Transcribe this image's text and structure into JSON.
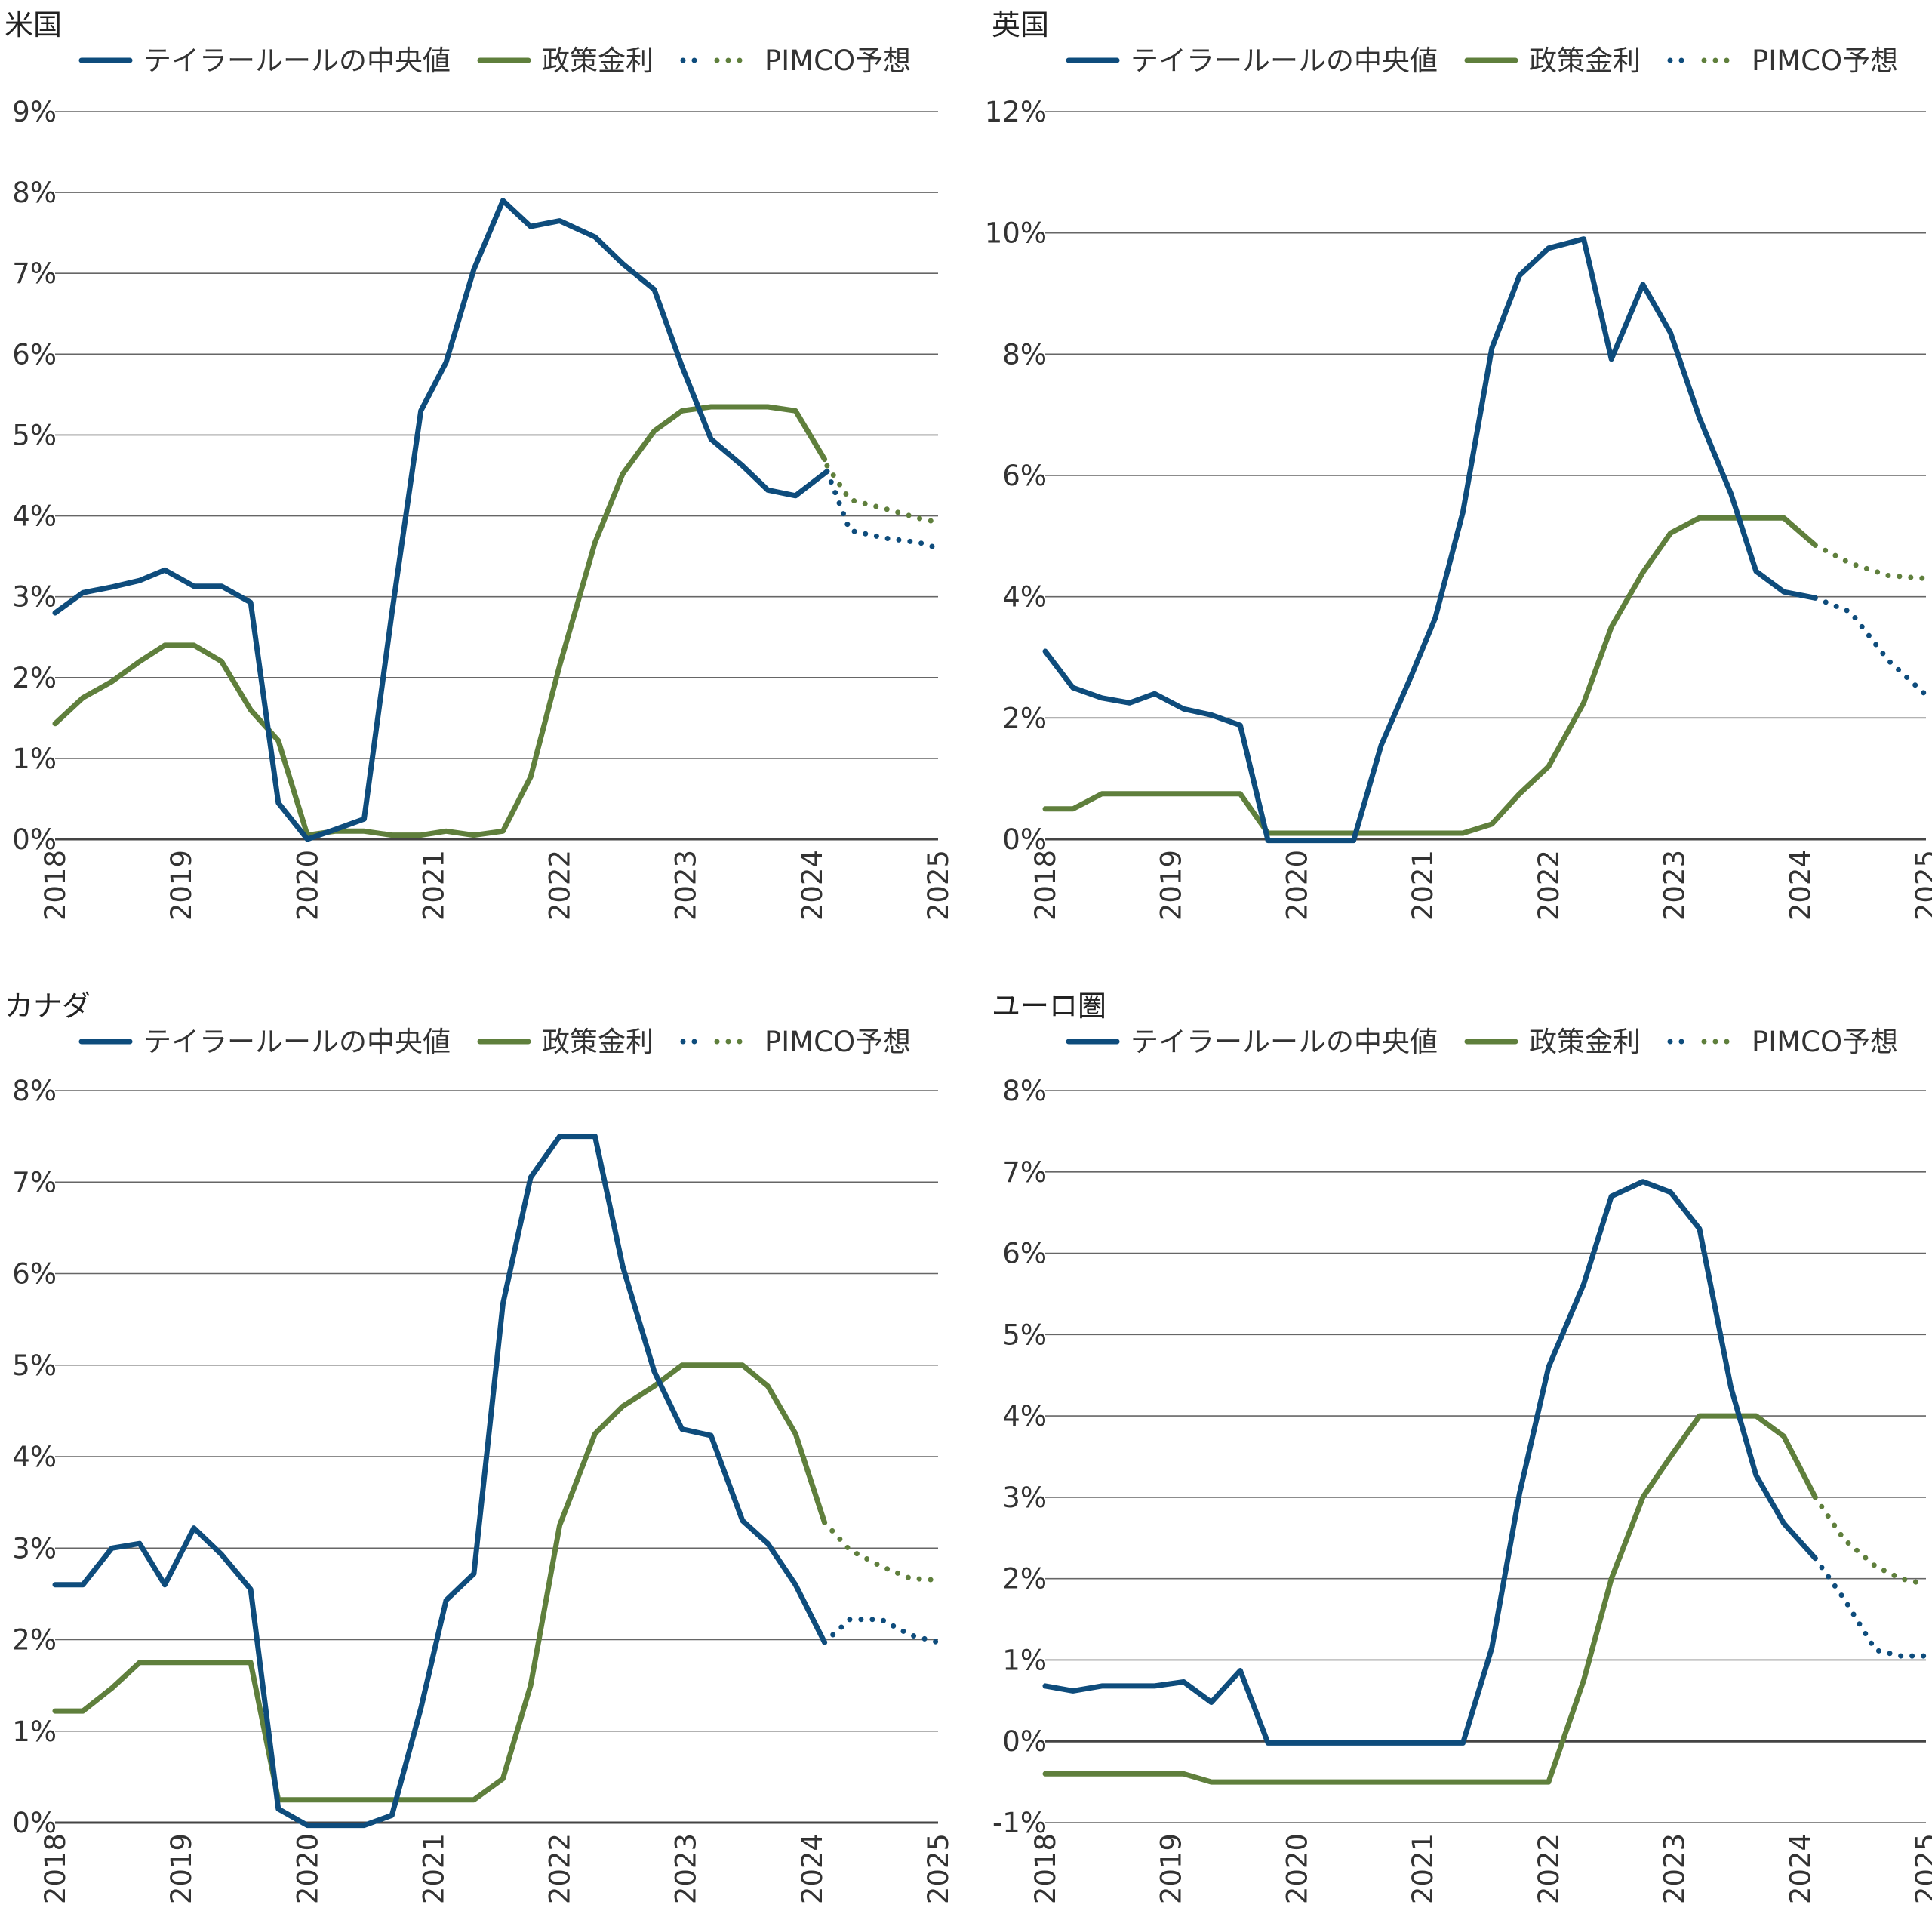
{
  "colors": {
    "taylor": "#0e4c7c",
    "policy": "#5f7f3c",
    "grid": "#666666",
    "zero": "#444444",
    "text": "#222222"
  },
  "legend": {
    "taylor": "テイラールールの中央値",
    "policy": "政策金利",
    "forecast": "PIMCO予想"
  },
  "chart_data": [
    {
      "type": "line",
      "title": "米国",
      "ylim": [
        0,
        9
      ],
      "yticks": [
        0,
        1,
        2,
        3,
        4,
        5,
        6,
        7,
        8,
        9
      ],
      "ytick_labels": [
        "0%",
        "1%",
        "2%",
        "3%",
        "4%",
        "5%",
        "6%",
        "7%",
        "8%",
        "9%"
      ],
      "xlim": [
        2018,
        2025
      ],
      "xticks": [
        "2018",
        "2019",
        "2020",
        "2021",
        "2022",
        "2023",
        "2024",
        "2025"
      ],
      "series": [
        {
          "name": "テイラールールの中央値",
          "style": "solid",
          "x": [
            2018.0,
            2018.22,
            2018.45,
            2018.67,
            2018.87,
            2019.1,
            2019.32,
            2019.55,
            2019.77,
            2020.0,
            2020.22,
            2020.45,
            2020.67,
            2020.9,
            2021.1,
            2021.32,
            2021.55,
            2021.77,
            2022.0,
            2022.28,
            2022.5,
            2022.75,
            2022.97,
            2023.2,
            2023.45,
            2023.65,
            2023.87,
            2024.12
          ],
          "y": [
            2.8,
            3.05,
            3.12,
            3.2,
            3.33,
            3.13,
            3.13,
            2.93,
            0.45,
            0.0,
            0.12,
            0.25,
            2.8,
            5.3,
            5.9,
            7.05,
            7.9,
            7.58,
            7.65,
            7.45,
            7.12,
            6.8,
            5.85,
            4.95,
            4.62,
            4.32,
            4.25,
            4.55
          ]
        },
        {
          "name": "政策金利",
          "style": "solid",
          "x": [
            2018.0,
            2018.22,
            2018.45,
            2018.67,
            2018.87,
            2019.1,
            2019.32,
            2019.55,
            2019.77,
            2020.0,
            2020.22,
            2020.45,
            2020.67,
            2020.9,
            2021.1,
            2021.32,
            2021.55,
            2021.77,
            2022.0,
            2022.28,
            2022.5,
            2022.75,
            2022.97,
            2023.2,
            2023.45,
            2023.65,
            2023.87,
            2024.1
          ],
          "y": [
            1.43,
            1.75,
            1.95,
            2.2,
            2.4,
            2.4,
            2.2,
            1.6,
            1.22,
            0.05,
            0.1,
            0.1,
            0.05,
            0.05,
            0.1,
            0.05,
            0.1,
            0.77,
            2.15,
            3.67,
            4.52,
            5.05,
            5.3,
            5.35,
            5.35,
            5.35,
            5.3,
            4.7
          ]
        },
        {
          "name": "テイラールールの中央値 PIMCO予想",
          "style": "dotted",
          "x": [
            2024.12,
            2024.3,
            2024.6,
            2024.85,
            2025.0
          ],
          "y": [
            4.55,
            3.82,
            3.72,
            3.67,
            3.6
          ]
        },
        {
          "name": "政策金利 PIMCO予想",
          "style": "dotted",
          "x": [
            2024.12,
            2024.3,
            2024.6,
            2024.85,
            2025.0
          ],
          "y": [
            4.62,
            4.2,
            4.08,
            3.97,
            3.92
          ]
        }
      ]
    },
    {
      "type": "line",
      "title": "英国",
      "ylim": [
        0,
        12
      ],
      "yticks": [
        0,
        2,
        4,
        6,
        8,
        10,
        12
      ],
      "ytick_labels": [
        "0%",
        "2%",
        "4%",
        "6%",
        "8%",
        "10%",
        "12%"
      ],
      "xlim": [
        2018,
        2025
      ],
      "xticks": [
        "2018",
        "2019",
        "2020",
        "2021",
        "2022",
        "2023",
        "2024",
        "2025"
      ],
      "series": [
        {
          "name": "テイラールールの中央値",
          "style": "solid",
          "x": [
            2018.0,
            2018.22,
            2018.45,
            2018.67,
            2018.87,
            2019.1,
            2019.32,
            2019.55,
            2019.77,
            2020.0,
            2020.22,
            2020.45,
            2020.67,
            2020.9,
            2021.1,
            2021.32,
            2021.55,
            2021.77,
            2022.0,
            2022.28,
            2022.5,
            2022.75,
            2022.97,
            2023.2,
            2023.45,
            2023.65,
            2023.87,
            2024.12
          ],
          "y": [
            3.1,
            2.5,
            2.33,
            2.25,
            2.4,
            2.15,
            2.05,
            1.88,
            -0.02,
            -0.02,
            -0.02,
            -0.02,
            1.55,
            2.65,
            3.65,
            5.4,
            8.1,
            9.3,
            9.75,
            9.9,
            7.92,
            9.15,
            8.35,
            6.95,
            5.7,
            4.42,
            4.08,
            3.98
          ]
        },
        {
          "name": "政策金利",
          "style": "solid",
          "x": [
            2018.0,
            2018.22,
            2018.45,
            2018.67,
            2018.87,
            2019.1,
            2019.32,
            2019.55,
            2019.77,
            2020.0,
            2020.22,
            2020.45,
            2020.67,
            2020.9,
            2021.1,
            2021.32,
            2021.55,
            2021.77,
            2022.0,
            2022.28,
            2022.5,
            2022.75,
            2022.97,
            2023.2,
            2023.45,
            2023.65,
            2023.87,
            2024.12
          ],
          "y": [
            0.5,
            0.5,
            0.75,
            0.75,
            0.75,
            0.75,
            0.75,
            0.75,
            0.1,
            0.1,
            0.1,
            0.1,
            0.1,
            0.1,
            0.1,
            0.1,
            0.25,
            0.75,
            1.2,
            2.25,
            3.5,
            4.4,
            5.05,
            5.3,
            5.3,
            5.3,
            5.3,
            4.85
          ]
        },
        {
          "name": "テイラールールの中央値 PIMCO予想",
          "style": "dotted",
          "x": [
            2024.12,
            2024.4,
            2024.7,
            2025.0
          ],
          "y": [
            3.98,
            3.75,
            2.95,
            2.38
          ]
        },
        {
          "name": "政策金利 PIMCO予想",
          "style": "dotted",
          "x": [
            2024.12,
            2024.4,
            2024.7,
            2025.0
          ],
          "y": [
            4.85,
            4.55,
            4.35,
            4.3
          ]
        }
      ]
    },
    {
      "type": "line",
      "title": "カナダ",
      "ylim": [
        0,
        8
      ],
      "yticks": [
        0,
        1,
        2,
        3,
        4,
        5,
        6,
        7,
        8
      ],
      "ytick_labels": [
        "0%",
        "1%",
        "2%",
        "3%",
        "4%",
        "5%",
        "6%",
        "7%",
        "8%"
      ],
      "xlim": [
        2018,
        2025
      ],
      "xticks": [
        "2018",
        "2019",
        "2020",
        "2021",
        "2022",
        "2023",
        "2024",
        "2025"
      ],
      "series": [
        {
          "name": "テイラールールの中央値",
          "style": "solid",
          "x": [
            2018.0,
            2018.22,
            2018.45,
            2018.67,
            2018.87,
            2019.1,
            2019.32,
            2019.55,
            2019.77,
            2020.0,
            2020.22,
            2020.45,
            2020.67,
            2020.9,
            2021.1,
            2021.32,
            2021.55,
            2021.77,
            2022.0,
            2022.28,
            2022.5,
            2022.75,
            2022.97,
            2023.2,
            2023.45,
            2023.65,
            2023.87,
            2024.1
          ],
          "y": [
            2.6,
            2.6,
            3.0,
            3.05,
            2.6,
            3.22,
            2.93,
            2.55,
            0.15,
            -0.03,
            -0.03,
            -0.03,
            0.08,
            1.25,
            2.43,
            2.72,
            5.67,
            7.05,
            7.5,
            7.5,
            6.08,
            4.93,
            4.3,
            4.23,
            3.3,
            3.05,
            2.6,
            1.97
          ]
        },
        {
          "name": "政策金利",
          "style": "solid",
          "x": [
            2018.0,
            2018.22,
            2018.45,
            2018.67,
            2018.87,
            2019.1,
            2019.32,
            2019.55,
            2019.77,
            2020.0,
            2020.22,
            2020.45,
            2020.67,
            2020.9,
            2021.1,
            2021.32,
            2021.55,
            2021.77,
            2022.0,
            2022.28,
            2022.5,
            2022.75,
            2022.97,
            2023.2,
            2023.45,
            2023.65,
            2023.87,
            2024.1
          ],
          "y": [
            1.22,
            1.22,
            1.47,
            1.75,
            1.75,
            1.75,
            1.75,
            1.75,
            0.25,
            0.25,
            0.25,
            0.25,
            0.25,
            0.25,
            0.25,
            0.25,
            0.48,
            1.5,
            3.25,
            4.25,
            4.55,
            4.77,
            5.0,
            5.0,
            5.0,
            4.77,
            4.25,
            3.28
          ]
        },
        {
          "name": "テイラールールの中央値 PIMCO予想",
          "style": "dotted",
          "x": [
            2024.1,
            2024.3,
            2024.55,
            2024.78,
            2025.0
          ],
          "y": [
            1.97,
            2.22,
            2.22,
            2.05,
            1.97
          ]
        },
        {
          "name": "政策金利 PIMCO予想",
          "style": "dotted",
          "x": [
            2024.1,
            2024.3,
            2024.55,
            2024.78,
            2025.0
          ],
          "y": [
            3.28,
            2.98,
            2.8,
            2.67,
            2.65
          ]
        }
      ]
    },
    {
      "type": "line",
      "title": "ユーロ圏",
      "ylim": [
        -1,
        8
      ],
      "yticks": [
        -1,
        0,
        1,
        2,
        3,
        4,
        5,
        6,
        7,
        8
      ],
      "ytick_labels": [
        "-1%",
        "0%",
        "1%",
        "2%",
        "3%",
        "4%",
        "5%",
        "6%",
        "7%",
        "8%"
      ],
      "xlim": [
        2018,
        2025
      ],
      "xticks": [
        "2018",
        "2019",
        "2020",
        "2021",
        "2022",
        "2023",
        "2024",
        "2025"
      ],
      "series": [
        {
          "name": "テイラールールの中央値",
          "style": "solid",
          "x": [
            2018.0,
            2018.22,
            2018.45,
            2018.67,
            2018.87,
            2019.1,
            2019.32,
            2019.55,
            2019.77,
            2020.0,
            2020.22,
            2020.45,
            2020.67,
            2020.9,
            2021.1,
            2021.32,
            2021.55,
            2021.77,
            2022.0,
            2022.28,
            2022.5,
            2022.75,
            2022.97,
            2023.2,
            2023.45,
            2023.65,
            2023.87,
            2024.12
          ],
          "y": [
            0.68,
            0.62,
            0.68,
            0.68,
            0.68,
            0.73,
            0.48,
            0.87,
            -0.02,
            -0.02,
            -0.02,
            -0.02,
            -0.02,
            -0.02,
            -0.02,
            -0.02,
            1.15,
            3.05,
            4.6,
            5.62,
            6.7,
            6.88,
            6.75,
            6.3,
            4.35,
            3.27,
            2.68,
            2.25
          ]
        },
        {
          "name": "政策金利",
          "style": "solid",
          "x": [
            2018.0,
            2018.22,
            2018.45,
            2018.67,
            2018.87,
            2019.1,
            2019.32,
            2019.55,
            2019.77,
            2020.0,
            2020.22,
            2020.45,
            2020.67,
            2020.9,
            2021.1,
            2021.32,
            2021.55,
            2021.77,
            2022.0,
            2022.28,
            2022.5,
            2022.75,
            2022.97,
            2023.2,
            2023.45,
            2023.65,
            2023.87,
            2024.12
          ],
          "y": [
            -0.4,
            -0.4,
            -0.4,
            -0.4,
            -0.4,
            -0.4,
            -0.5,
            -0.5,
            -0.5,
            -0.5,
            -0.5,
            -0.5,
            -0.5,
            -0.5,
            -0.5,
            -0.5,
            -0.5,
            -0.5,
            -0.5,
            0.75,
            2.0,
            3.0,
            3.5,
            4.0,
            4.0,
            4.0,
            3.75,
            3.0
          ]
        },
        {
          "name": "テイラールールの中央値 PIMCO予想",
          "style": "dotted",
          "x": [
            2024.12,
            2024.35,
            2024.6,
            2024.8,
            2025.0
          ],
          "y": [
            2.25,
            1.75,
            1.12,
            1.05,
            1.05
          ]
        },
        {
          "name": "政策金利 PIMCO予想",
          "style": "dotted",
          "x": [
            2024.12,
            2024.35,
            2024.6,
            2024.8,
            2025.0
          ],
          "y": [
            3.0,
            2.48,
            2.15,
            2.0,
            1.93
          ]
        }
      ]
    }
  ]
}
